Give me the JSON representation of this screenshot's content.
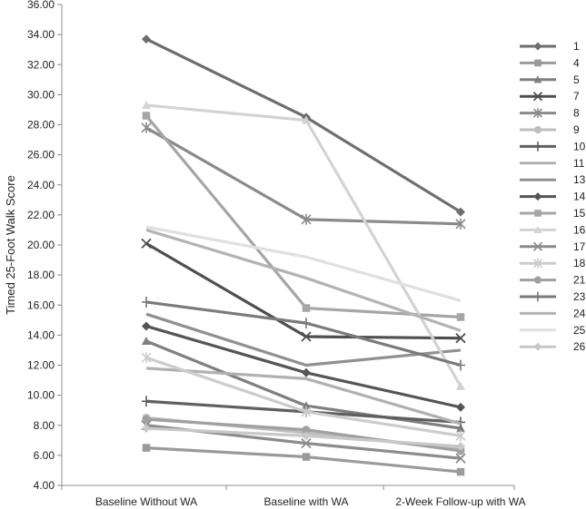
{
  "chart_data": {
    "type": "line",
    "title": "",
    "xlabel": "",
    "ylabel": "Timed 25-Foot Walk Score",
    "ylim": [
      4,
      36
    ],
    "ytick_step": 2,
    "ytick_labels": [
      "4.00",
      "6.00",
      "8.00",
      "10.00",
      "12.00",
      "14.00",
      "16.00",
      "18.00",
      "20.00",
      "22.00",
      "24.00",
      "26.00",
      "28.00",
      "30.00",
      "32.00",
      "34.00",
      "36.00"
    ],
    "categories": [
      "Baseline Without WA",
      "Baseline with WA",
      "2-Week Follow-up with WA"
    ],
    "grid": false,
    "legend_position": "right",
    "series": [
      {
        "name": "1",
        "values": [
          33.7,
          28.5,
          22.2
        ],
        "color": "#6e6e6e",
        "marker": "diamond"
      },
      {
        "name": "4",
        "values": [
          6.5,
          5.9,
          4.9
        ],
        "color": "#9a9a9a",
        "marker": "square"
      },
      {
        "name": "5",
        "values": [
          13.6,
          9.3,
          7.8
        ],
        "color": "#7f7f7f",
        "marker": "triangle"
      },
      {
        "name": "7",
        "values": [
          20.1,
          13.9,
          13.8
        ],
        "color": "#4f4f4f",
        "marker": "x"
      },
      {
        "name": "8",
        "values": [
          27.8,
          21.7,
          21.4
        ],
        "color": "#8a8a8a",
        "marker": "asterisk"
      },
      {
        "name": "9",
        "values": [
          8.5,
          7.5,
          6.4
        ],
        "color": "#bdbdbd",
        "marker": "circle"
      },
      {
        "name": "10",
        "values": [
          9.6,
          8.9,
          8.2
        ],
        "color": "#5f5f5f",
        "marker": "plus"
      },
      {
        "name": "11",
        "values": [
          11.8,
          11.1,
          8.1
        ],
        "color": "#b0b0b0",
        "marker": "none"
      },
      {
        "name": "13",
        "values": [
          15.4,
          12.0,
          13.0
        ],
        "color": "#909090",
        "marker": "none"
      },
      {
        "name": "14",
        "values": [
          14.6,
          11.5,
          9.2
        ],
        "color": "#555555",
        "marker": "diamond"
      },
      {
        "name": "15",
        "values": [
          28.6,
          15.8,
          15.2
        ],
        "color": "#a6a6a6",
        "marker": "square"
      },
      {
        "name": "16",
        "values": [
          29.3,
          28.3,
          10.6
        ],
        "color": "#d3d3d3",
        "marker": "triangle"
      },
      {
        "name": "17",
        "values": [
          8.0,
          6.8,
          5.8
        ],
        "color": "#8c8c8c",
        "marker": "x"
      },
      {
        "name": "18",
        "values": [
          12.5,
          8.9,
          7.3
        ],
        "color": "#cccccc",
        "marker": "asterisk"
      },
      {
        "name": "21",
        "values": [
          8.4,
          7.7,
          6.3
        ],
        "color": "#a0a0a0",
        "marker": "circle"
      },
      {
        "name": "23",
        "values": [
          16.2,
          14.8,
          12.0
        ],
        "color": "#7a7a7a",
        "marker": "plus"
      },
      {
        "name": "24",
        "values": [
          21.0,
          17.8,
          14.3
        ],
        "color": "#b3b3b3",
        "marker": "none"
      },
      {
        "name": "25",
        "values": [
          21.2,
          19.2,
          16.3
        ],
        "color": "#e0e0e0",
        "marker": "none"
      },
      {
        "name": "26",
        "values": [
          7.8,
          7.3,
          6.6
        ],
        "color": "#c8c8c8",
        "marker": "diamond"
      }
    ]
  }
}
